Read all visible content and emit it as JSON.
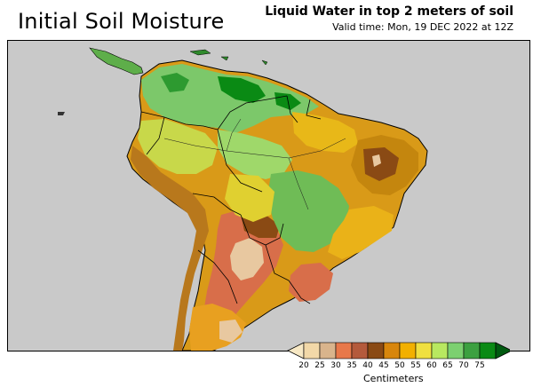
{
  "title": "Initial Soil Moisture",
  "subtitle": "Liquid Water in top 2 meters of soil",
  "valid_time": "Valid time: Mon, 19 DEC 2022 at 12Z",
  "legend": {
    "units": "Centimeters",
    "ticks": [
      "20",
      "25",
      "30",
      "35",
      "40",
      "45",
      "50",
      "55",
      "60",
      "65",
      "70",
      "75"
    ],
    "colors": [
      "#f2d8a8",
      "#d9b48c",
      "#e8784a",
      "#b45a3c",
      "#8a4a14",
      "#d8860c",
      "#f2b000",
      "#f0e040",
      "#b8e860",
      "#7cd070",
      "#3ca040",
      "#0a8a14"
    ],
    "low_arrow_color": "#f7e8c4",
    "high_arrow_color": "#005a10"
  },
  "map": {
    "ocean_color": "#c9c9c9",
    "border_color": "#000000"
  }
}
